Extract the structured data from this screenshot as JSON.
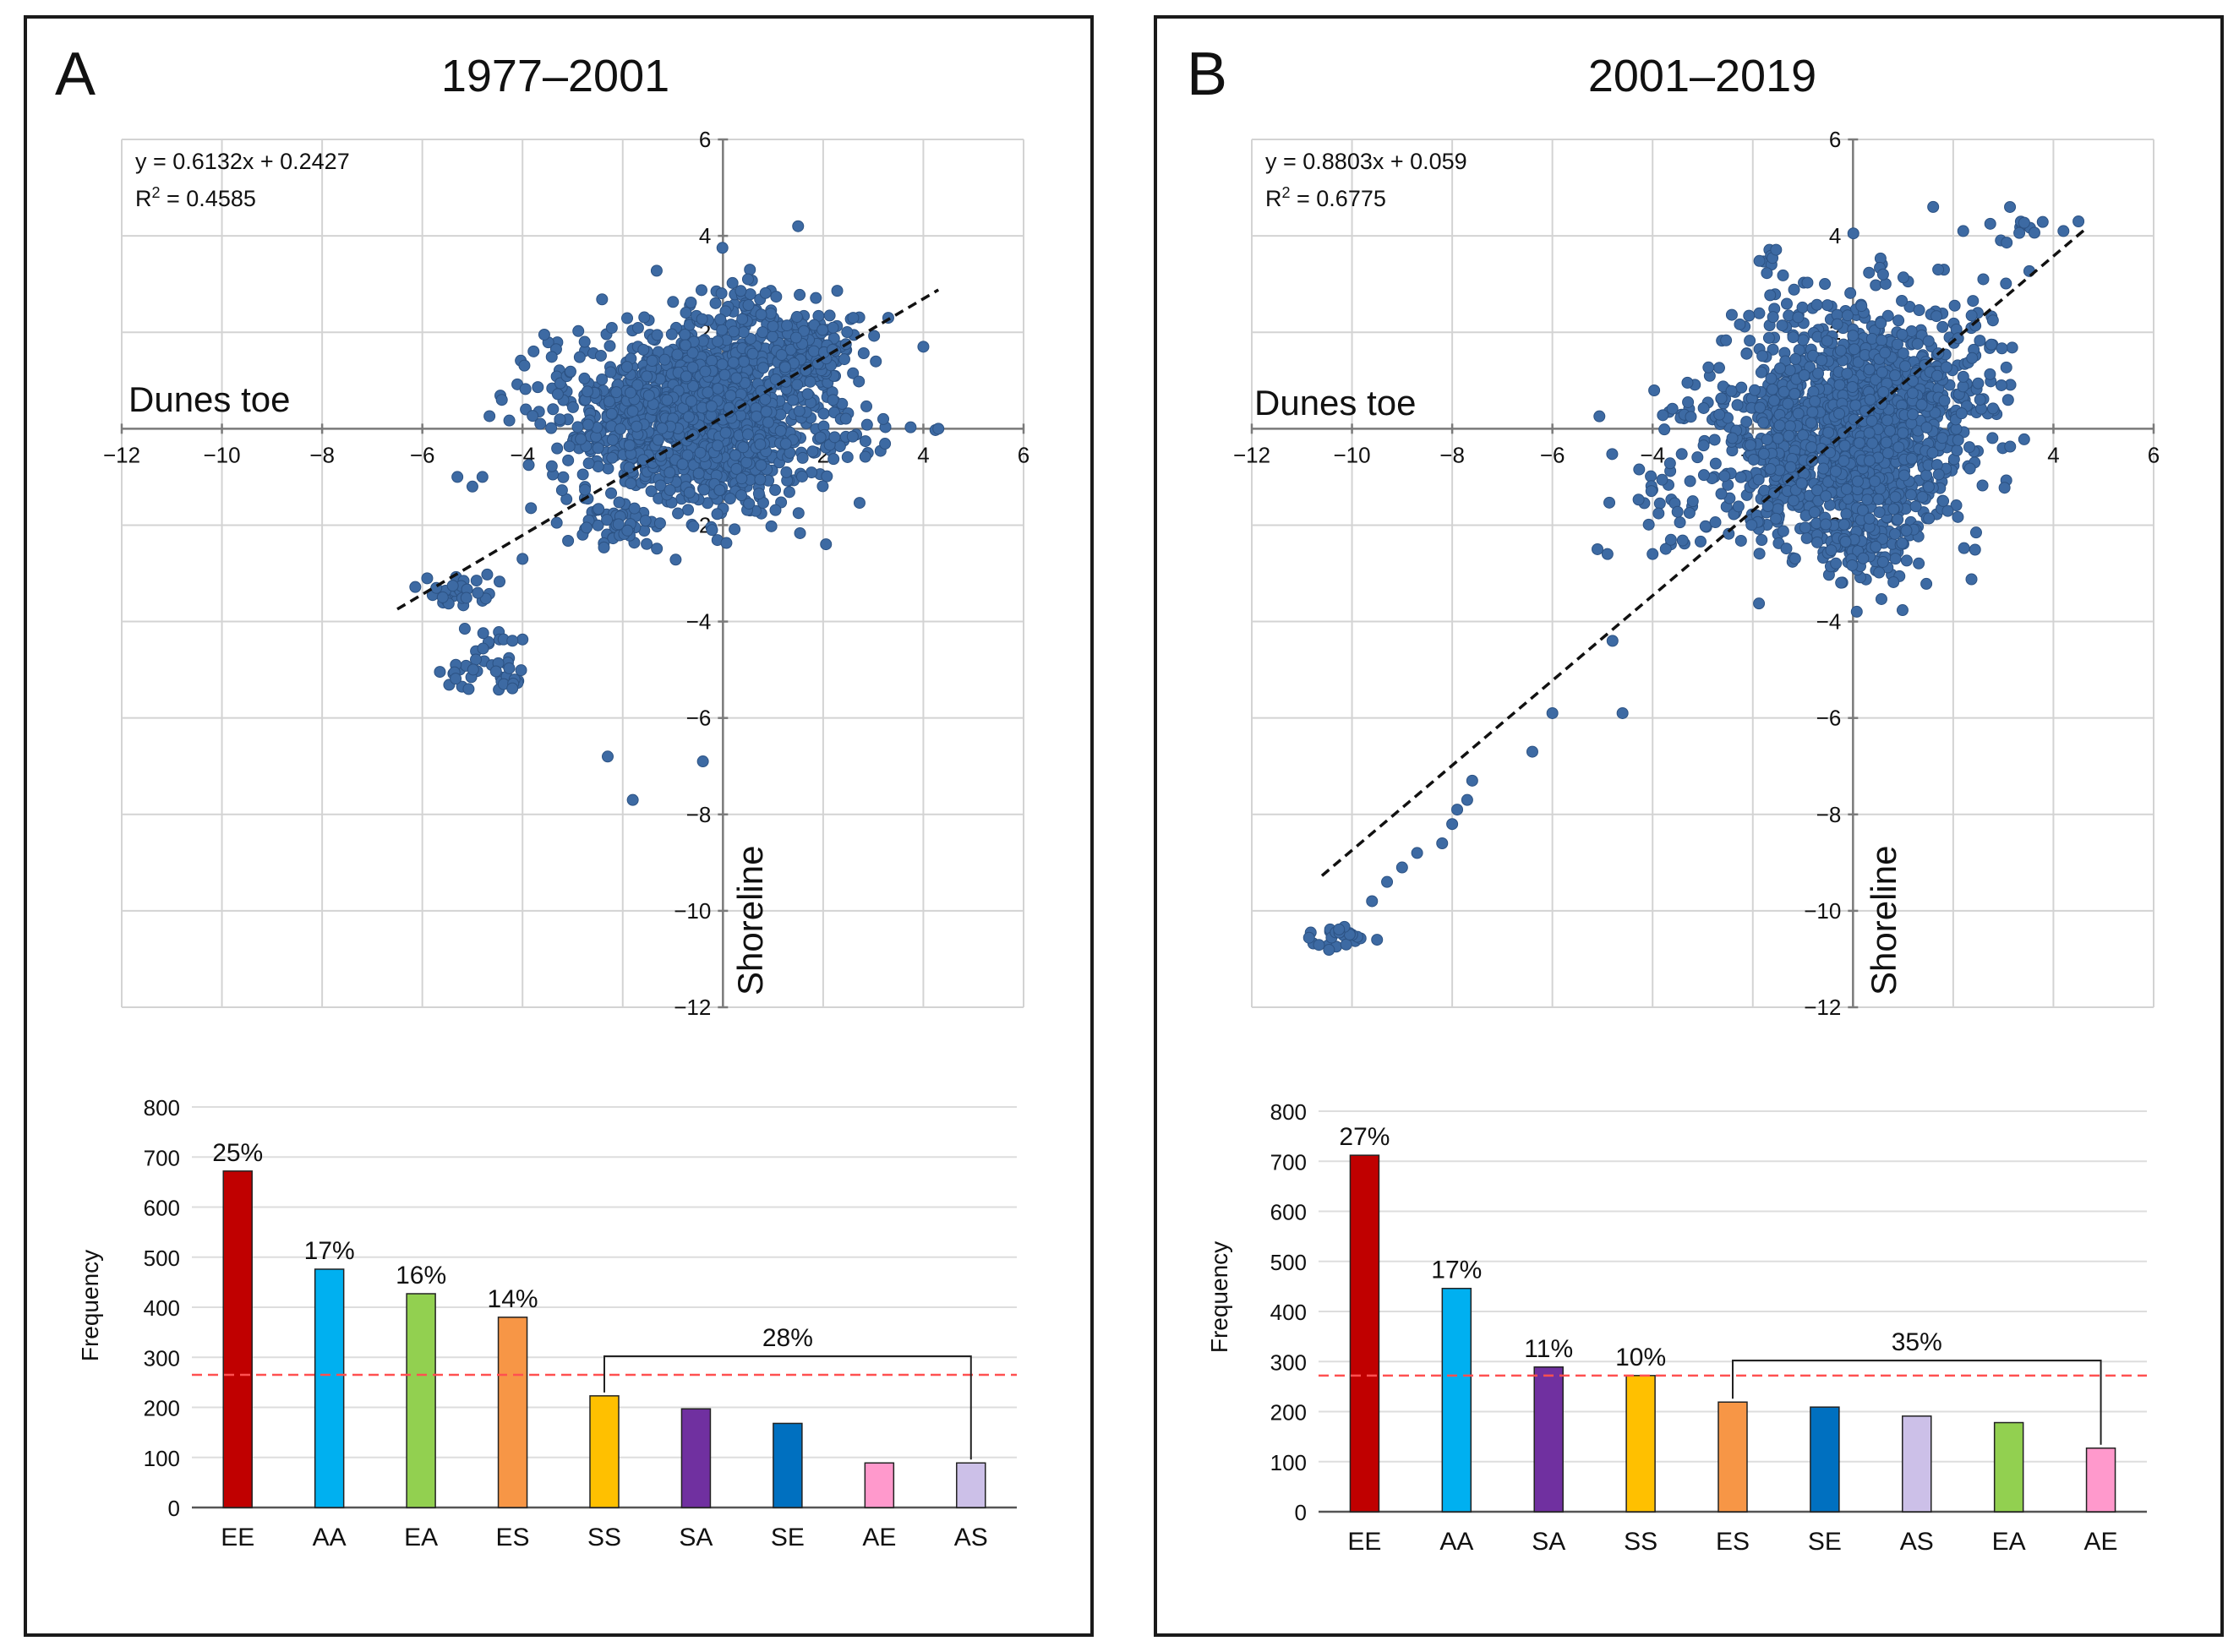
{
  "panels": [
    {
      "letter": "A",
      "title": "1977–2001",
      "scatter": {
        "equation": "y = 0.6132x + 0.2427",
        "r2_prefix": "R",
        "r2_sup": "2",
        "r2_value": " = 0.4585",
        "xlabel": "Dunes toe",
        "ylabel": "Shoreline",
        "xticks": [
          "−12",
          "−10",
          "−8",
          "−6",
          "−4",
          "−2",
          "0",
          "2",
          "4",
          "6"
        ],
        "yticks": [
          "6",
          "4",
          "2",
          "0",
          "−2",
          "−4",
          "−6",
          "−8",
          "−10",
          "−12"
        ]
      },
      "bars": {
        "ylabel": "Frequency",
        "yticks": [
          "0",
          "100",
          "200",
          "300",
          "400",
          "500",
          "600",
          "700",
          "800"
        ],
        "bracket_label": "28%"
      }
    },
    {
      "letter": "B",
      "title": "2001–2019",
      "scatter": {
        "equation": "y = 0.8803x + 0.059",
        "r2_prefix": "R",
        "r2_sup": "2",
        "r2_value": " = 0.6775",
        "xlabel": "Dunes toe",
        "ylabel": "Shoreline",
        "xticks": [
          "−12",
          "−10",
          "−8",
          "−6",
          "−4",
          "−2",
          "0",
          "2",
          "4",
          "6"
        ],
        "yticks": [
          "6",
          "4",
          "2",
          "0",
          "−2",
          "−4",
          "−6",
          "−8",
          "−10",
          "−12"
        ]
      },
      "bars": {
        "ylabel": "Frequency",
        "yticks": [
          "0",
          "100",
          "200",
          "300",
          "400",
          "500",
          "600",
          "700",
          "800"
        ],
        "bracket_label": "35%"
      }
    }
  ],
  "chart_data": [
    {
      "type": "scatter",
      "title": "1977–2001",
      "xlabel": "Dunes toe",
      "ylabel": "Shoreline",
      "xlim": [
        -12,
        6
      ],
      "ylim": [
        -12,
        6
      ],
      "grid": true,
      "point_color": "#3d6aa3",
      "trendline": {
        "slope": 0.6132,
        "intercept": 0.2427,
        "x_range": [
          -6.5,
          4.3
        ],
        "r2": 0.4585,
        "style": "dashed"
      },
      "clusters": [
        {
          "cx": -0.3,
          "cy": 0.3,
          "sx": 1.25,
          "sy": 0.95,
          "n": 1300
        },
        {
          "cx": 1.6,
          "cy": 1.6,
          "sx": 0.6,
          "sy": 0.4,
          "n": 180
        },
        {
          "cx": 0.4,
          "cy": 2.5,
          "sx": 0.4,
          "sy": 0.3,
          "n": 40
        },
        {
          "cx": -2.4,
          "cy": 0.5,
          "sx": 0.9,
          "sy": 0.6,
          "n": 70
        },
        {
          "cx": -2.2,
          "cy": -2.0,
          "sx": 0.4,
          "sy": 0.3,
          "n": 40
        },
        {
          "cx": -5.2,
          "cy": -3.3,
          "sx": 0.4,
          "sy": 0.2,
          "n": 30
        },
        {
          "cx": -4.6,
          "cy": -4.6,
          "sx": 0.3,
          "sy": 0.3,
          "n": 20
        },
        {
          "cx": -4.3,
          "cy": -5.2,
          "sx": 0.25,
          "sy": 0.15,
          "n": 12
        },
        {
          "cx": -5.2,
          "cy": -5.1,
          "sx": 0.2,
          "sy": 0.2,
          "n": 12
        }
      ],
      "points": [
        {
          "x": 1.5,
          "y": 4.2
        },
        {
          "x": 3.2,
          "y": 0.2
        },
        {
          "x": 4.3,
          "y": 0
        },
        {
          "x": 4.0,
          "y": 1.7
        },
        {
          "x": -5.3,
          "y": -1.0
        },
        {
          "x": -5.0,
          "y": -1.2
        },
        {
          "x": -4.8,
          "y": -1.0
        },
        {
          "x": -2.3,
          "y": -6.8
        },
        {
          "x": -1.8,
          "y": -7.7
        },
        {
          "x": -0.4,
          "y": -6.9
        },
        {
          "x": -4.0,
          "y": -2.7
        },
        {
          "x": 2.6,
          "y": 2.3
        },
        {
          "x": 3.3,
          "y": 2.3
        },
        {
          "x": 0.5,
          "y": 3.1
        }
      ]
    },
    {
      "type": "scatter",
      "title": "2001–2019",
      "xlabel": "Dunes toe",
      "ylabel": "Shoreline",
      "xlim": [
        -12,
        6
      ],
      "ylim": [
        -12,
        6
      ],
      "grid": true,
      "point_color": "#3d6aa3",
      "trendline": {
        "slope": 0.8803,
        "intercept": 0.059,
        "x_range": [
          -10.6,
          4.6
        ],
        "r2": 0.6775,
        "style": "dashed"
      },
      "clusters": [
        {
          "cx": 0.0,
          "cy": 0.0,
          "sx": 1.1,
          "sy": 1.2,
          "n": 1300
        },
        {
          "cx": -1.6,
          "cy": -1.0,
          "sx": 0.7,
          "sy": 0.6,
          "n": 90
        },
        {
          "cx": 0.0,
          "cy": -2.3,
          "sx": 0.6,
          "sy": 0.35,
          "n": 80
        },
        {
          "cx": 2.2,
          "cy": 1.3,
          "sx": 0.6,
          "sy": 0.9,
          "n": 70
        },
        {
          "cx": -3.0,
          "cy": 0.3,
          "sx": 0.8,
          "sy": 0.5,
          "n": 40
        },
        {
          "cx": -3.8,
          "cy": -1.6,
          "sx": 0.5,
          "sy": 0.5,
          "n": 30
        },
        {
          "cx": -1.7,
          "cy": 3.4,
          "sx": 0.2,
          "sy": 0.2,
          "n": 10
        },
        {
          "cx": 3.4,
          "cy": 4.2,
          "sx": 0.35,
          "sy": 0.15,
          "n": 12
        },
        {
          "cx": -10.2,
          "cy": -10.5,
          "sx": 0.35,
          "sy": 0.2,
          "n": 24
        }
      ],
      "points": [
        {
          "x": -9.6,
          "y": -9.8
        },
        {
          "x": -9.3,
          "y": -9.4
        },
        {
          "x": -9.0,
          "y": -9.1
        },
        {
          "x": -8.7,
          "y": -8.8
        },
        {
          "x": -8.2,
          "y": -8.6
        },
        {
          "x": -8.0,
          "y": -8.2
        },
        {
          "x": -7.9,
          "y": -7.9
        },
        {
          "x": -7.7,
          "y": -7.7
        },
        {
          "x": -7.6,
          "y": -7.3
        },
        {
          "x": -6.4,
          "y": -6.7
        },
        {
          "x": -6.0,
          "y": -5.9
        },
        {
          "x": -4.8,
          "y": -4.4
        },
        {
          "x": -4.6,
          "y": -5.9
        },
        {
          "x": -5.1,
          "y": -2.5
        },
        {
          "x": -4.9,
          "y": -2.6
        },
        {
          "x": -4.0,
          "y": -2.6
        },
        {
          "x": 1.6,
          "y": 4.6
        },
        {
          "x": 2.2,
          "y": 4.1
        },
        {
          "x": 4.2,
          "y": 4.1
        },
        {
          "x": 4.5,
          "y": 4.3
        },
        {
          "x": 0.6,
          "y": 3.2
        },
        {
          "x": 1.7,
          "y": 3.3
        },
        {
          "x": 2.6,
          "y": 3.1
        },
        {
          "x": 1.8,
          "y": -1.5
        }
      ]
    },
    {
      "type": "bar",
      "ylabel": "Frequency",
      "ylim": [
        0,
        800
      ],
      "grid": true,
      "categories": [
        "EE",
        "AA",
        "EA",
        "ES",
        "SS",
        "SA",
        "SE",
        "AE",
        "AS"
      ],
      "values": [
        672,
        476,
        427,
        380,
        223,
        197,
        168,
        89,
        89
      ],
      "colors": [
        "#c00000",
        "#00b0f0",
        "#92d050",
        "#f79646",
        "#ffc000",
        "#7030a0",
        "#0070c0",
        "#ff99cc",
        "#ccc0e8"
      ],
      "labels": [
        "25%",
        "17%",
        "16%",
        "14%",
        "",
        "",
        "",
        "",
        ""
      ],
      "reference_line": {
        "value": 265,
        "style": "dashed",
        "color": "#ff5050"
      },
      "bracket": {
        "from": "SS",
        "to": "AS",
        "label": "28%"
      }
    },
    {
      "type": "bar",
      "ylabel": "Frequency",
      "ylim": [
        0,
        800
      ],
      "grid": true,
      "categories": [
        "EE",
        "AA",
        "SA",
        "SS",
        "ES",
        "SE",
        "AS",
        "EA",
        "AE"
      ],
      "values": [
        712,
        446,
        289,
        272,
        219,
        209,
        191,
        178,
        127
      ],
      "colors": [
        "#c00000",
        "#00b0f0",
        "#7030a0",
        "#ffc000",
        "#f79646",
        "#0070c0",
        "#ccc0e8",
        "#92d050",
        "#ff99cc"
      ],
      "labels": [
        "27%",
        "17%",
        "11%",
        "10%",
        "",
        "",
        "",
        "",
        ""
      ],
      "reference_line": {
        "value": 272,
        "style": "dashed",
        "color": "#ff5050"
      },
      "bracket": {
        "from": "ES",
        "to": "AE",
        "label": "35%"
      }
    }
  ]
}
